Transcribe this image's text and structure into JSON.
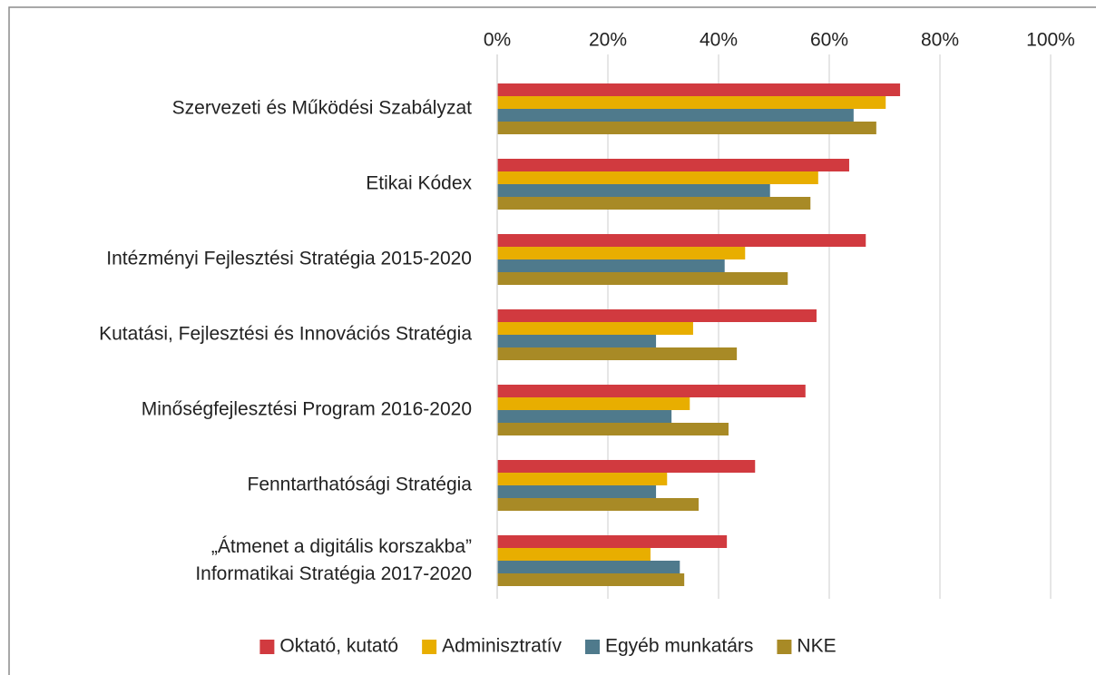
{
  "chart_data": {
    "type": "bar",
    "orientation": "horizontal",
    "categories": [
      "Szervezeti és Működési Szabályzat",
      "Etikai Kódex",
      "Intézményi Fejlesztési Stratégia 2015-2020",
      "Kutatási, Fejlesztési és Innovációs Stratégia",
      "Minőségfejlesztési Program 2016-2020",
      "Fenntarthatósági Stratégia",
      "„Átmenet a digitális korszakba”\nInformatikai Stratégia 2017-2020"
    ],
    "series": [
      {
        "name": "Oktató, kutató",
        "color": "#d13a3f",
        "values": [
          72.8,
          63.6,
          66.6,
          57.7,
          55.7,
          46.6,
          41.5
        ]
      },
      {
        "name": "Adminisztratív",
        "color": "#e8ae00",
        "values": [
          70.2,
          58.0,
          44.8,
          35.4,
          34.8,
          30.7,
          27.7
        ]
      },
      {
        "name": "Egyéb munkatárs",
        "color": "#4f7a8c",
        "values": [
          64.4,
          49.3,
          41.1,
          28.7,
          31.5,
          28.7,
          33.0
        ]
      },
      {
        "name": "NKE",
        "color": "#a88a26",
        "values": [
          68.5,
          56.6,
          52.5,
          43.3,
          41.8,
          36.4,
          33.8
        ]
      }
    ],
    "xlim": [
      0,
      100
    ],
    "xticks": [
      {
        "value": 0,
        "label": "0%"
      },
      {
        "value": 20,
        "label": "20%"
      },
      {
        "value": 40,
        "label": "40%"
      },
      {
        "value": 60,
        "label": "60%"
      },
      {
        "value": 80,
        "label": "80%"
      },
      {
        "value": 100,
        "label": "100%"
      }
    ],
    "grid": true,
    "legend": "bottom"
  }
}
